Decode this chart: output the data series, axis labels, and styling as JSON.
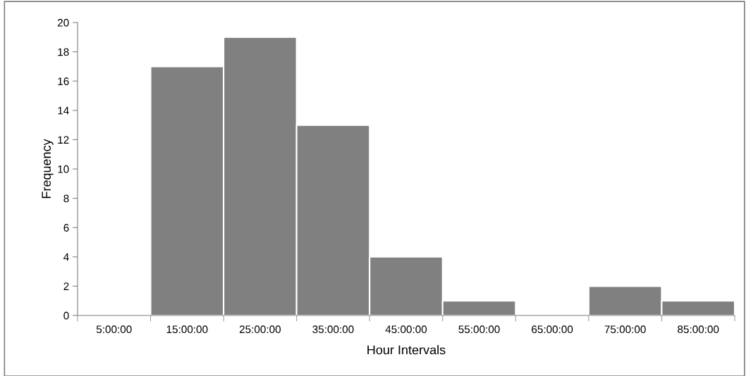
{
  "chart_data": {
    "type": "bar",
    "xlabel": "Hour Intervals",
    "ylabel": "Frequency",
    "categories": [
      "5:00:00",
      "15:00:00",
      "25:00:00",
      "35:00:00",
      "45:00:00",
      "55:00:00",
      "65:00:00",
      "75:00:00",
      "85:00:00"
    ],
    "values": [
      0,
      17,
      19,
      13,
      4,
      1,
      0,
      2,
      1
    ],
    "color": "#808080",
    "ylim": [
      0,
      20
    ],
    "yticks": [
      0,
      2,
      4,
      6,
      8,
      10,
      12,
      14,
      16,
      18,
      20
    ],
    "grid": false
  }
}
